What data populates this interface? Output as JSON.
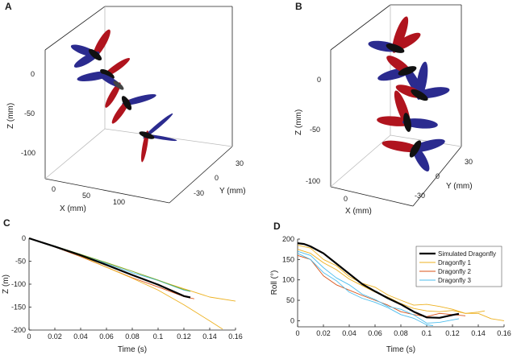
{
  "panels": [
    {
      "letter": "A"
    },
    {
      "letter": "B"
    },
    {
      "letter": "C"
    },
    {
      "letter": "D"
    }
  ],
  "three_d": [
    {
      "panel": "A",
      "z_label": "Z (mm)",
      "y_label": "Y (mm)",
      "x_label": "X (mm)",
      "z_ticks": [
        "0",
        "-50",
        "-100"
      ],
      "y_ticks": [
        "30",
        "0",
        "-30"
      ],
      "x_ticks": [
        "0",
        "50",
        "100"
      ],
      "colors": {
        "forewing": "#2b2b8f",
        "hindwing": "#b0141e",
        "body": "#111111"
      }
    },
    {
      "panel": "B",
      "z_label": "Z (mm)",
      "y_label": "Y (mm)",
      "x_label": "X (mm)",
      "z_ticks": [
        "0",
        "-50",
        "-100"
      ],
      "y_ticks": [
        "30",
        "0",
        "-30"
      ],
      "x_ticks": [
        "0"
      ],
      "colors": {
        "forewing": "#2b2b8f",
        "hindwing": "#b0141e",
        "body": "#111111"
      }
    }
  ],
  "chart_data": [
    {
      "panel": "C",
      "type": "line",
      "xlabel": "Time (s)",
      "ylabel": "Z (m)",
      "xlim": [
        0,
        0.16
      ],
      "ylim": [
        -200,
        0
      ],
      "x_ticks": [
        "0",
        "0.02",
        "0.04",
        "0.06",
        "0.08",
        "0.1",
        "0.12",
        "0.14",
        "0.16"
      ],
      "y_ticks": [
        "0",
        "-50",
        "-100",
        "-150",
        "-200"
      ],
      "series": [
        {
          "color": "#000000",
          "width": 2.2,
          "points": [
            [
              0,
              0
            ],
            [
              0.02,
              -18
            ],
            [
              0.04,
              -37
            ],
            [
              0.06,
              -58
            ],
            [
              0.08,
              -80
            ],
            [
              0.1,
              -101
            ],
            [
              0.12,
              -126
            ],
            [
              0.125,
              -129
            ]
          ]
        },
        {
          "color": "#d95319",
          "width": 0.9,
          "points": [
            [
              0,
              0
            ],
            [
              0.02,
              -19
            ],
            [
              0.04,
              -40
            ],
            [
              0.06,
              -63
            ],
            [
              0.08,
              -86
            ],
            [
              0.1,
              -106
            ],
            [
              0.12,
              -127
            ],
            [
              0.128,
              -132
            ]
          ]
        },
        {
          "color": "#edb120",
          "width": 0.9,
          "points": [
            [
              0,
              0
            ],
            [
              0.02,
              -18
            ],
            [
              0.04,
              -37
            ],
            [
              0.06,
              -54
            ],
            [
              0.08,
              -72
            ],
            [
              0.1,
              -92
            ],
            [
              0.12,
              -110
            ],
            [
              0.14,
              -128
            ],
            [
              0.16,
              -137
            ]
          ]
        },
        {
          "color": "#edb120",
          "width": 0.9,
          "points": [
            [
              0,
              0
            ],
            [
              0.02,
              -18
            ],
            [
              0.04,
              -39
            ],
            [
              0.06,
              -63
            ],
            [
              0.08,
              -87
            ],
            [
              0.1,
              -113
            ],
            [
              0.12,
              -145
            ],
            [
              0.14,
              -180
            ],
            [
              0.15,
              -198
            ]
          ]
        },
        {
          "color": "#4dbeee",
          "width": 0.9,
          "points": [
            [
              0,
              0
            ],
            [
              0.02,
              -17
            ],
            [
              0.04,
              -36
            ],
            [
              0.06,
              -55
            ],
            [
              0.08,
              -75
            ],
            [
              0.1,
              -92
            ],
            [
              0.12,
              -113
            ],
            [
              0.125,
              -116
            ]
          ]
        },
        {
          "color": "#77ac30",
          "width": 0.9,
          "points": [
            [
              0,
              0
            ],
            [
              0.02,
              -17
            ],
            [
              0.04,
              -35
            ],
            [
              0.06,
              -53
            ],
            [
              0.08,
              -72
            ],
            [
              0.1,
              -91
            ],
            [
              0.12,
              -112
            ],
            [
              0.125,
              -115
            ]
          ]
        }
      ]
    },
    {
      "panel": "D",
      "type": "line",
      "xlabel": "Time (s)",
      "ylabel": "Roll (°)",
      "xlim": [
        0,
        0.16
      ],
      "ylim": [
        -15,
        200
      ],
      "x_ticks": [
        "0",
        "0.02",
        "0.04",
        "0.06",
        "0.08",
        "0.1",
        "0.12",
        "0.14",
        "0.16"
      ],
      "y_ticks": [
        "200",
        "150",
        "100",
        "50",
        "0"
      ],
      "legend": {
        "placement": "top-right",
        "entries": [
          {
            "label": "Simulated Dragonfly",
            "color": "#000000",
            "width": 2.2
          },
          {
            "label": "Dragonfly 1",
            "color": "#edb120",
            "width": 1
          },
          {
            "label": "Dragonfly 2",
            "color": "#d95319",
            "width": 1
          },
          {
            "label": "Dragonfly 3",
            "color": "#4dbeee",
            "width": 1
          }
        ]
      },
      "series": [
        {
          "color": "#000000",
          "width": 2.2,
          "points": [
            [
              0,
              190
            ],
            [
              0.005,
              188
            ],
            [
              0.01,
              182
            ],
            [
              0.02,
              165
            ],
            [
              0.03,
              140
            ],
            [
              0.04,
              115
            ],
            [
              0.05,
              90
            ],
            [
              0.06,
              72
            ],
            [
              0.07,
              55
            ],
            [
              0.08,
              40
            ],
            [
              0.09,
              22
            ],
            [
              0.1,
              8
            ],
            [
              0.11,
              7
            ],
            [
              0.12,
              14
            ],
            [
              0.125,
              17
            ]
          ]
        },
        {
          "color": "#edb120",
          "width": 0.9,
          "points": [
            [
              0,
              185
            ],
            [
              0.01,
              178
            ],
            [
              0.02,
              150
            ],
            [
              0.03,
              135
            ],
            [
              0.04,
              108
            ],
            [
              0.05,
              92
            ],
            [
              0.06,
              82
            ],
            [
              0.07,
              63
            ],
            [
              0.08,
              50
            ],
            [
              0.09,
              38
            ],
            [
              0.1,
              40
            ],
            [
              0.11,
              35
            ],
            [
              0.12,
              28
            ],
            [
              0.13,
              18
            ],
            [
              0.14,
              18
            ],
            [
              0.15,
              5
            ],
            [
              0.16,
              0
            ]
          ]
        },
        {
          "color": "#edb120",
          "width": 0.9,
          "points": [
            [
              0,
              175
            ],
            [
              0.01,
              165
            ],
            [
              0.02,
              142
            ],
            [
              0.03,
              125
            ],
            [
              0.04,
              102
            ],
            [
              0.05,
              86
            ],
            [
              0.06,
              70
            ],
            [
              0.07,
              58
            ],
            [
              0.08,
              42
            ],
            [
              0.09,
              30
            ],
            [
              0.1,
              24
            ],
            [
              0.11,
              22
            ],
            [
              0.12,
              25
            ],
            [
              0.13,
              18
            ],
            [
              0.14,
              21
            ],
            [
              0.145,
              24
            ]
          ]
        },
        {
          "color": "#d95319",
          "width": 0.9,
          "points": [
            [
              0,
              160
            ],
            [
              0.01,
              150
            ],
            [
              0.02,
              110
            ],
            [
              0.03,
              88
            ],
            [
              0.04,
              75
            ],
            [
              0.05,
              62
            ],
            [
              0.06,
              50
            ],
            [
              0.07,
              38
            ],
            [
              0.08,
              22
            ],
            [
              0.09,
              15
            ],
            [
              0.1,
              10
            ],
            [
              0.11,
              18
            ],
            [
              0.12,
              15
            ],
            [
              0.13,
              12
            ]
          ]
        },
        {
          "color": "#4dbeee",
          "width": 0.9,
          "points": [
            [
              0,
              170
            ],
            [
              0.01,
              160
            ],
            [
              0.02,
              130
            ],
            [
              0.03,
              105
            ],
            [
              0.04,
              88
            ],
            [
              0.05,
              65
            ],
            [
              0.06,
              52
            ],
            [
              0.07,
              35
            ],
            [
              0.08,
              28
            ],
            [
              0.09,
              14
            ],
            [
              0.1,
              -6
            ],
            [
              0.11,
              -4
            ],
            [
              0.12,
              2
            ],
            [
              0.125,
              5
            ]
          ]
        },
        {
          "color": "#4dbeee",
          "width": 0.9,
          "points": [
            [
              0,
              165
            ],
            [
              0.01,
              150
            ],
            [
              0.02,
              118
            ],
            [
              0.03,
              98
            ],
            [
              0.04,
              70
            ],
            [
              0.05,
              55
            ],
            [
              0.06,
              45
            ],
            [
              0.07,
              32
            ],
            [
              0.08,
              15
            ],
            [
              0.09,
              6
            ],
            [
              0.1,
              -10
            ],
            [
              0.105,
              -12
            ]
          ]
        }
      ]
    }
  ]
}
